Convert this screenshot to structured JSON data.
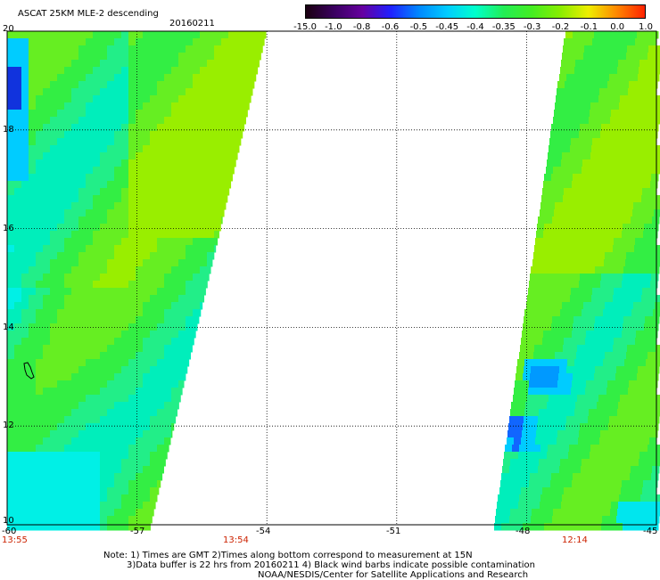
{
  "header": {
    "title": "ASCAT 25KM MLE-2 descending",
    "date": "20160211"
  },
  "colorbar": {
    "labels": [
      "-15.0",
      "-1.0",
      "-0.8",
      "-0.6",
      "-0.5",
      "-0.45",
      "-0.4",
      "-0.35",
      "-0.3",
      "-0.2",
      "-0.1",
      "0.0",
      "1.0"
    ],
    "colors": [
      "#1a0010",
      "#3a0060",
      "#6600a0",
      "#2020ff",
      "#0088ff",
      "#00ccff",
      "#00ffcc",
      "#22ee55",
      "#44ee22",
      "#88ee00",
      "#eeee00",
      "#ff8800",
      "#ff2200"
    ]
  },
  "map": {
    "lon_range": [
      -60,
      -45
    ],
    "lat_range": [
      10,
      20
    ],
    "lon_ticks": [
      "-60",
      "-57",
      "-54",
      "-51",
      "-48",
      "-45"
    ],
    "lat_ticks": [
      "20",
      "18",
      "16",
      "14",
      "12",
      "10"
    ],
    "times": [
      "13:55",
      "13:54",
      "12:14"
    ]
  },
  "notes": {
    "line1": "Note: 1) Times are GMT 2)Times along bottom correspond to measurement at 15N",
    "line2": "3)Data buffer is 22 hrs from 20160211 4) Black wind barbs indicate possible contamination",
    "line3": "NOAA/NESDIS/Center for Satellite Applications and Research"
  }
}
